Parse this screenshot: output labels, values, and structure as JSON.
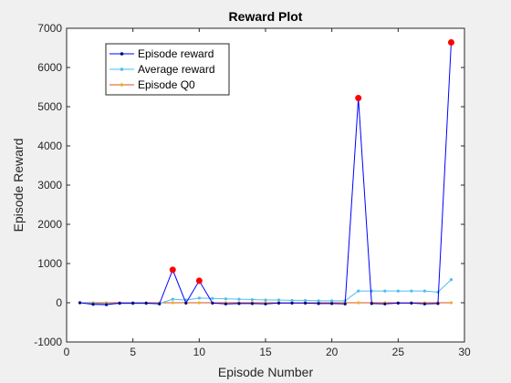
{
  "chart_data": {
    "type": "line",
    "title": "Reward Plot",
    "xlabel": "Episode Number",
    "ylabel": "Episode Reward",
    "xlim": [
      0,
      30
    ],
    "ylim": [
      -1000,
      7000
    ],
    "xticks": [
      0,
      5,
      10,
      15,
      20,
      25,
      30
    ],
    "yticks": [
      -1000,
      0,
      1000,
      2000,
      3000,
      4000,
      5000,
      6000,
      7000
    ],
    "grid": false,
    "legend_position": "top-left",
    "x": [
      1,
      2,
      3,
      4,
      5,
      6,
      7,
      8,
      9,
      10,
      11,
      12,
      13,
      14,
      15,
      16,
      17,
      18,
      19,
      20,
      21,
      22,
      23,
      24,
      25,
      26,
      27,
      28,
      29
    ],
    "series": [
      {
        "name": "Episode reward",
        "color": "#0000ff",
        "marker_color": "#00007f",
        "values": [
          0,
          -40,
          -50,
          -10,
          -10,
          -10,
          -30,
          840,
          -10,
          560,
          -10,
          -30,
          -20,
          -20,
          -30,
          -10,
          -10,
          -10,
          -20,
          -20,
          -30,
          5220,
          -20,
          -30,
          -10,
          -10,
          -30,
          -20,
          6640
        ]
      },
      {
        "name": "Average reward",
        "color": "#4dbeee",
        "marker_color": "#4dbeee",
        "values": [
          0,
          -20,
          -30,
          -20,
          -20,
          -20,
          -20,
          90,
          70,
          120,
          110,
          100,
          90,
          80,
          70,
          70,
          60,
          60,
          50,
          50,
          50,
          300,
          300,
          300,
          300,
          300,
          300,
          270,
          590
        ]
      },
      {
        "name": "Episode Q0",
        "color": "#d95319",
        "marker_color": "#edb120",
        "values": [
          0,
          0,
          0,
          0,
          0,
          0,
          0,
          0,
          0,
          0,
          0,
          0,
          0,
          0,
          0,
          0,
          0,
          0,
          0,
          0,
          0,
          0,
          0,
          0,
          0,
          0,
          0,
          0,
          0
        ]
      }
    ],
    "highlight_points": {
      "color": "#ff0000",
      "points": [
        [
          8,
          840
        ],
        [
          10,
          560
        ],
        [
          22,
          5220
        ],
        [
          29,
          6640
        ]
      ]
    }
  }
}
